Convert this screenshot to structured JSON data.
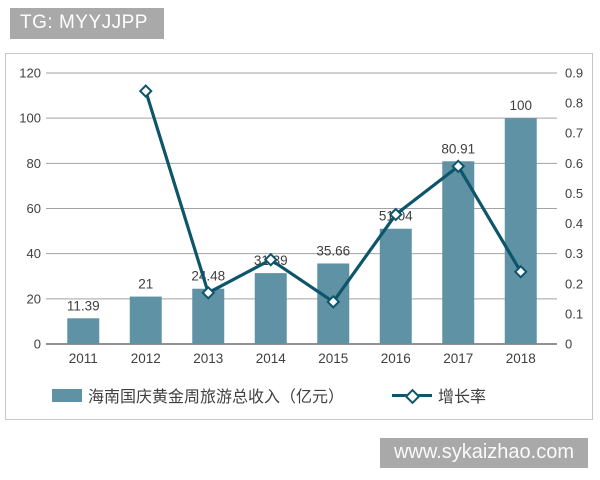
{
  "header": {
    "tag": "TG: MYYJJPP"
  },
  "watermark": {
    "text": "www.sykaizhao.com"
  },
  "colors": {
    "bar": "#6092a5",
    "line": "#0d556a",
    "badge_bg": "#a9a9a9",
    "grid": "#a3a3a3",
    "axis": "#6e6e6e",
    "text": "#404040",
    "frame_border": "#c6c6c6"
  },
  "chart_data": {
    "type": "bar",
    "subtype": "combo-bar-line",
    "title": "",
    "categories": [
      "2011",
      "2012",
      "2013",
      "2014",
      "2015",
      "2016",
      "2017",
      "2018"
    ],
    "series": [
      {
        "name": "海南国庆黄金周旅游总收入（亿元）",
        "type": "bar",
        "axis": "left",
        "values": [
          11.39,
          21,
          24.48,
          31.39,
          35.66,
          51.04,
          80.91,
          100
        ],
        "labels": [
          "11.39",
          "21",
          "24.48",
          "31.39",
          "35.66",
          "51.04",
          "80.91",
          "100"
        ]
      },
      {
        "name": "增长率",
        "type": "line",
        "axis": "right",
        "marker": "open-diamond",
        "values": [
          null,
          0.84,
          0.17,
          0.28,
          0.14,
          0.43,
          0.59,
          0.24
        ]
      }
    ],
    "left_axis": {
      "min": 0,
      "max": 120,
      "tick_labels": [
        "0",
        "20",
        "40",
        "60",
        "80",
        "100",
        "120"
      ]
    },
    "right_axis": {
      "min": 0,
      "max": 0.9,
      "tick_labels": [
        "0",
        "0.1",
        "0.2",
        "0.3",
        "0.4",
        "0.5",
        "0.6",
        "0.7",
        "0.8",
        "0.9"
      ]
    },
    "grid": true,
    "legend_position": "bottom"
  }
}
